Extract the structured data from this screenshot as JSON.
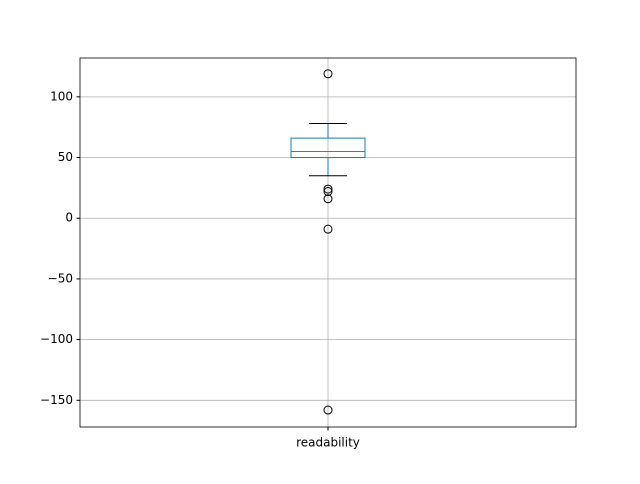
{
  "chart_data": {
    "type": "box",
    "categories": [
      "readability"
    ],
    "boxes": [
      {
        "whislo": 35,
        "q1": 50,
        "median": 55,
        "q3": 66,
        "whishi": 78,
        "fliers": [
          119,
          24,
          22,
          16,
          -9,
          -158
        ]
      }
    ],
    "box_color": "#1f77b4",
    "median_color": "#2ca02c",
    "whisker_color": "#000000",
    "ylim": [
      -172,
      132
    ],
    "yticks": [
      {
        "value": -150,
        "label": "−150"
      },
      {
        "value": -100,
        "label": "−100"
      },
      {
        "value": -50,
        "label": "−50"
      },
      0,
      50,
      100
    ],
    "grid": true
  }
}
